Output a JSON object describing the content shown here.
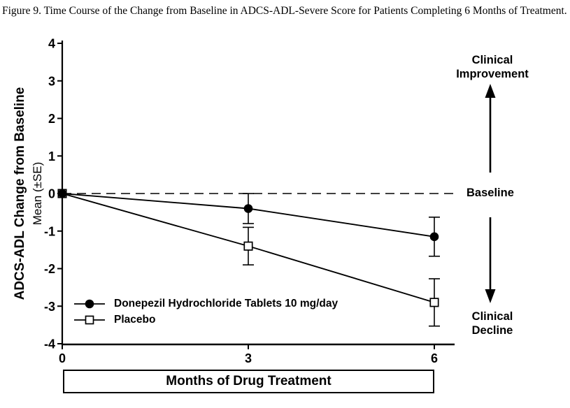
{
  "figure": {
    "title": "Figure 9. Time Course of the Change from Baseline in ADCS-ADL-Severe Score for Patients Completing 6 Months of Treatment."
  },
  "chart_data": {
    "type": "line",
    "x": [
      0,
      3,
      6
    ],
    "xticks": [
      "0",
      "3",
      "6"
    ],
    "yticks": [
      "4",
      "3",
      "2",
      "1",
      "0",
      "-1",
      "-2",
      "-3",
      "-4"
    ],
    "ytick_values": [
      4,
      3,
      2,
      1,
      0,
      -1,
      -2,
      -3,
      -4
    ],
    "ylim": [
      -4,
      4
    ],
    "xlim": [
      0,
      6
    ],
    "xlabel": "Months of Drug Treatment",
    "ylabel_line1": "ADCS-ADL Change from Baseline",
    "ylabel_line2": "Mean (±SE)",
    "grid": false,
    "legend_position": "inside-bottom-left",
    "baseline": {
      "value": 0,
      "style": "dashed"
    },
    "series": [
      {
        "name": "Placebo",
        "marker": "open-square",
        "values": [
          0,
          -1.4,
          -2.9
        ],
        "se": [
          0,
          0.5,
          0.63
        ]
      },
      {
        "name": "Donepezil Hydrochloride Tablets 10 mg/day",
        "marker": "filled-circle",
        "values": [
          0,
          -0.4,
          -1.15
        ],
        "se": [
          0,
          0.4,
          0.52
        ]
      }
    ]
  },
  "annotations": {
    "improvement_line1": "Clinical",
    "improvement_line2": "Improvement",
    "baseline_label": "Baseline",
    "decline_line1": "Clinical",
    "decline_line2": "Decline"
  },
  "colors": {
    "foreground": "#000000",
    "background": "#ffffff"
  }
}
